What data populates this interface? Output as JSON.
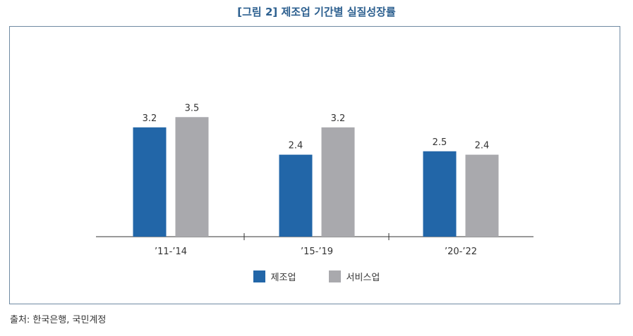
{
  "title": "[그림 2] 제조업 기간별 실질성장률",
  "source": "출처: 한국은행, 국민계정",
  "colors": {
    "manufacturing": "#2266a8",
    "services": "#a9a9ad",
    "frame": "#6f8aa3",
    "title": "#2c5f8f"
  },
  "legend": [
    {
      "label": "제조업",
      "color": "#2266a8"
    },
    {
      "label": "서비스업",
      "color": "#a9a9ad"
    }
  ],
  "chart_data": {
    "type": "bar",
    "title": "[그림 2] 제조업 기간별 실질성장률",
    "xlabel": "",
    "ylabel": "",
    "categories": [
      "’11-’14",
      "’15-’19",
      "’20-’22"
    ],
    "series": [
      {
        "name": "제조업",
        "values": [
          3.2,
          2.4,
          2.5
        ]
      },
      {
        "name": "서비스업",
        "values": [
          3.5,
          3.2,
          2.4
        ]
      }
    ],
    "ylim": [
      0,
      4.5
    ],
    "grid": false,
    "legend_position": "bottom"
  }
}
